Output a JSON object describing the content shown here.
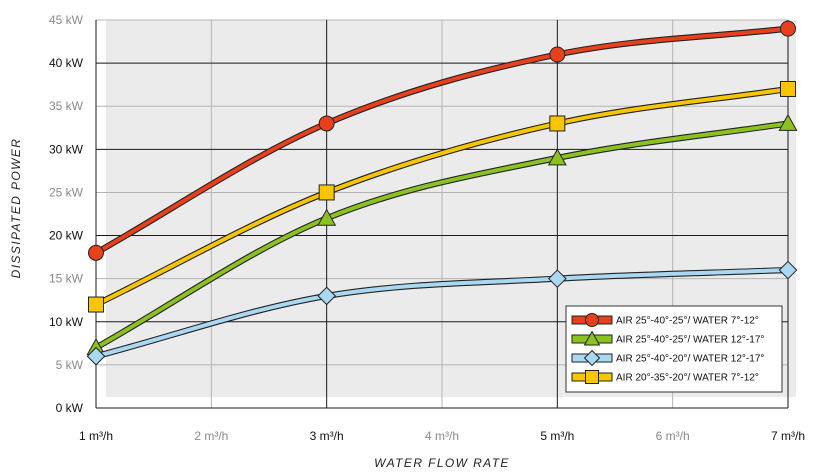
{
  "chart_data": {
    "type": "line",
    "title": "",
    "xlabel": "WATER FLOW RATE",
    "ylabel": "DISSIPATED POWER",
    "x": [
      1,
      3,
      5,
      7
    ],
    "xlim": [
      1,
      7
    ],
    "ylim": [
      0,
      45
    ],
    "x_ticks": [
      {
        "value": 1,
        "label": "1 m³/h",
        "major": true
      },
      {
        "value": 2,
        "label": "2 m³/h",
        "major": false
      },
      {
        "value": 3,
        "label": "3 m³/h",
        "major": true
      },
      {
        "value": 4,
        "label": "4 m³/h",
        "major": false
      },
      {
        "value": 5,
        "label": "5 m³/h",
        "major": true
      },
      {
        "value": 6,
        "label": "6 m³/h",
        "major": false
      },
      {
        "value": 7,
        "label": "7 m³/h",
        "major": true
      }
    ],
    "y_ticks": [
      {
        "value": 0,
        "label": "0 kW",
        "major": true
      },
      {
        "value": 5,
        "label": "5 kW",
        "major": false
      },
      {
        "value": 10,
        "label": "10 kW",
        "major": true
      },
      {
        "value": 15,
        "label": "15 kW",
        "major": false
      },
      {
        "value": 20,
        "label": "20 kW",
        "major": true
      },
      {
        "value": 25,
        "label": "25 kW",
        "major": false
      },
      {
        "value": 30,
        "label": "30 kW",
        "major": true
      },
      {
        "value": 35,
        "label": "35 kW",
        "major": false
      },
      {
        "value": 40,
        "label": "40 kW",
        "major": true
      },
      {
        "value": 45,
        "label": "45 kW",
        "major": false
      }
    ],
    "grid": true,
    "legend_position": "bottom-right",
    "series": [
      {
        "name": "AIR 25°-40°-25°/ WATER 7°-12°",
        "values": [
          18,
          33,
          41,
          44
        ],
        "color": "#e8401c",
        "marker": "circle"
      },
      {
        "name": "AIR 25°-40°-25°/ WATER 12°-17°",
        "values": [
          7,
          22,
          29,
          33
        ],
        "color": "#8cc21f",
        "marker": "triangle"
      },
      {
        "name": "AIR 25°-40°-20°/ WATER 12°-17°",
        "values": [
          6,
          13,
          15,
          16
        ],
        "color": "#a9d8f2",
        "marker": "diamond"
      },
      {
        "name": "AIR 20°-35°-20°/ WATER 7°-12°",
        "values": [
          12,
          25,
          33,
          37
        ],
        "color": "#f7c600",
        "marker": "square"
      }
    ],
    "colors": {
      "plot_background": "#ebebeb",
      "major_grid": "#1a1a1a",
      "minor_grid": "#b4b4b4",
      "major_tick_text": "#111111",
      "minor_tick_text": "#8a8a8a"
    }
  }
}
